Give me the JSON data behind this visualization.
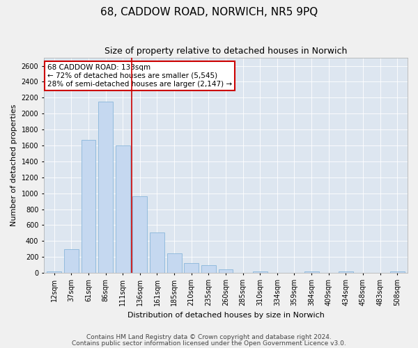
{
  "title": "68, CADDOW ROAD, NORWICH, NR5 9PQ",
  "subtitle": "Size of property relative to detached houses in Norwich",
  "xlabel": "Distribution of detached houses by size in Norwich",
  "ylabel": "Number of detached properties",
  "bar_color": "#c5d8f0",
  "bar_edge_color": "#7aaed6",
  "categories": [
    "12sqm",
    "37sqm",
    "61sqm",
    "86sqm",
    "111sqm",
    "136sqm",
    "161sqm",
    "185sqm",
    "210sqm",
    "235sqm",
    "260sqm",
    "285sqm",
    "310sqm",
    "334sqm",
    "359sqm",
    "384sqm",
    "409sqm",
    "434sqm",
    "458sqm",
    "483sqm",
    "508sqm"
  ],
  "values": [
    20,
    300,
    1670,
    2150,
    1600,
    960,
    510,
    245,
    120,
    100,
    45,
    0,
    18,
    0,
    0,
    20,
    0,
    20,
    0,
    0,
    20
  ],
  "vline_x": 4.5,
  "vline_color": "#cc0000",
  "annotation_text": "68 CADDOW ROAD: 133sqm\n← 72% of detached houses are smaller (5,545)\n28% of semi-detached houses are larger (2,147) →",
  "annotation_box_color": "white",
  "annotation_box_edge": "#cc0000",
  "ylim": [
    0,
    2700
  ],
  "yticks": [
    0,
    200,
    400,
    600,
    800,
    1000,
    1200,
    1400,
    1600,
    1800,
    2000,
    2200,
    2400,
    2600
  ],
  "footer1": "Contains HM Land Registry data © Crown copyright and database right 2024.",
  "footer2": "Contains public sector information licensed under the Open Government Licence v3.0.",
  "fig_bg_color": "#f0f0f0",
  "plot_bg_color": "#dde6f0",
  "title_fontsize": 11,
  "subtitle_fontsize": 9,
  "axis_label_fontsize": 8,
  "tick_fontsize": 7,
  "annotation_fontsize": 7.5,
  "footer_fontsize": 6.5
}
